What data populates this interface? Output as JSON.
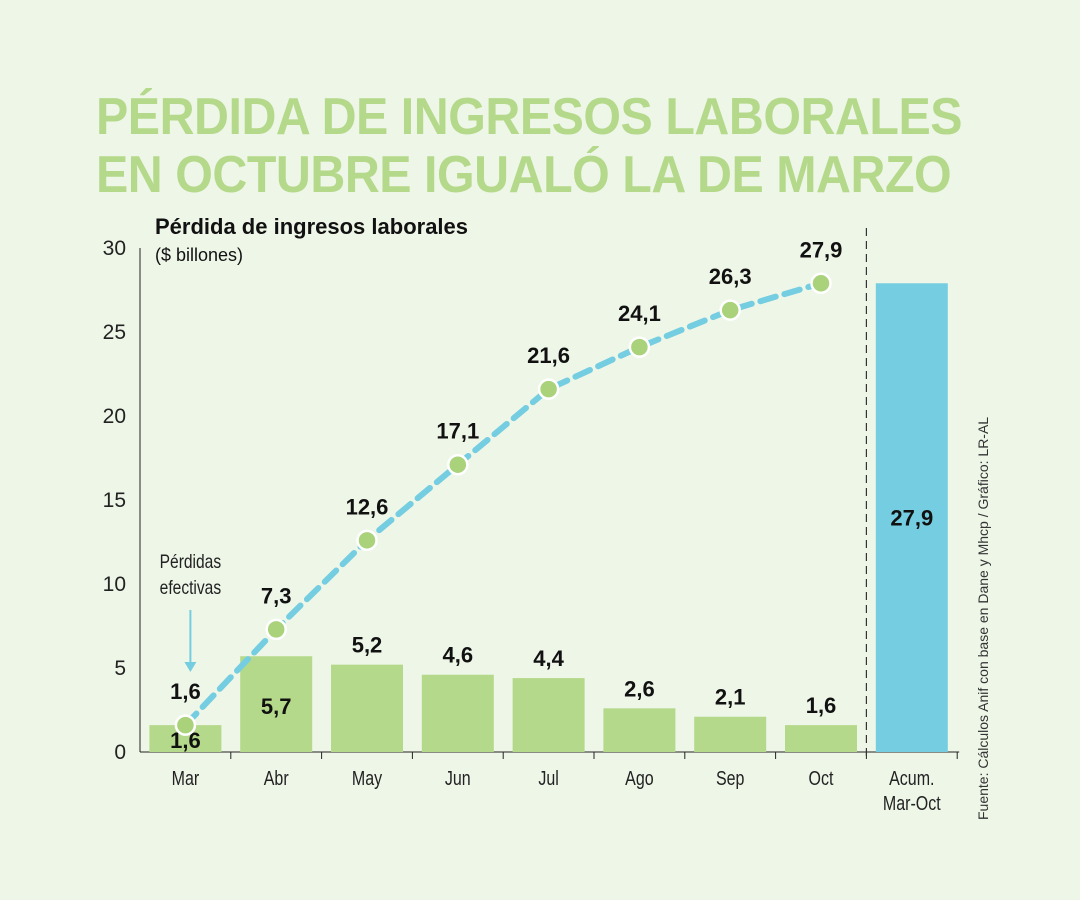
{
  "title_lines": [
    "PÉRDIDA DE INGRESOS LABORALES",
    "EN OCTUBRE IGUALÓ LA DE MARZO"
  ],
  "colors": {
    "title": "#b5d98a",
    "bar": "#b5d98a",
    "accum_bar": "#74cde0",
    "line": "#74cde0",
    "point": "#a9d27a",
    "background": "#eef6e8"
  },
  "chart_data": {
    "type": "bar",
    "title": "Pérdida de ingresos laborales",
    "ylabel": "($ billones)",
    "xlabel": "",
    "ylim": [
      0,
      30
    ],
    "yticks": [
      0,
      5,
      10,
      15,
      20,
      25,
      30
    ],
    "categories": [
      "Mar",
      "Abr",
      "May",
      "Jun",
      "Jul",
      "Ago",
      "Sep",
      "Oct"
    ],
    "series": [
      {
        "name": "Pérdidas efectivas",
        "type": "bar",
        "values": [
          1.6,
          5.7,
          5.2,
          4.6,
          4.4,
          2.6,
          2.1,
          1.6
        ],
        "labels": [
          "1,6",
          "5,7",
          "5,2",
          "4,6",
          "4,4",
          "2,6",
          "2,1",
          "1,6"
        ]
      },
      {
        "name": "Acumulado",
        "type": "line",
        "style": "dashed",
        "values": [
          1.6,
          7.3,
          12.6,
          17.1,
          21.6,
          24.1,
          26.3,
          27.9
        ],
        "labels": [
          "1,6",
          "7,3",
          "12,6",
          "17,1",
          "21,6",
          "24,1",
          "26,3",
          "27,9"
        ]
      }
    ],
    "accumulated": {
      "category_lines": [
        "Acum.",
        "Mar-Oct"
      ],
      "value": 27.9,
      "label": "27,9"
    },
    "annotation": {
      "text_lines": [
        "Pérdidas",
        "efectivas"
      ],
      "points_to": "Mar"
    },
    "grid": false,
    "legend": "none"
  },
  "source": "Fuente: Cálculos Anif con base en Dane y Mhcp / Gráfico: LR-AL"
}
